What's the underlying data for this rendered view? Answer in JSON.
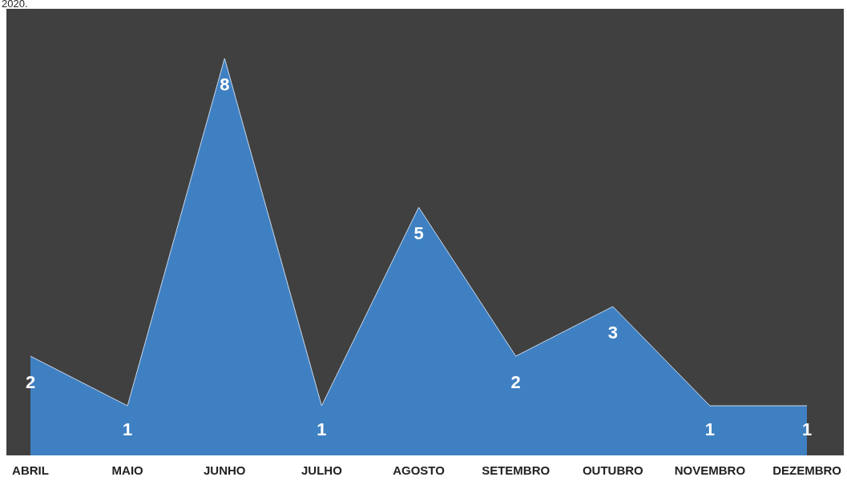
{
  "chart_data": {
    "type": "area",
    "annotations": [
      "2020."
    ],
    "categories": [
      "ABRIL",
      "MAIO",
      "JUNHO",
      "JULHO",
      "AGOSTO",
      "SETEMBRO",
      "OUTUBRO",
      "NOVEMBRO",
      "DEZEMBRO"
    ],
    "values": [
      2,
      1,
      8,
      1,
      5,
      2,
      3,
      1,
      1
    ],
    "color": "#3f80c2",
    "data_labels": true,
    "legend": false
  }
}
